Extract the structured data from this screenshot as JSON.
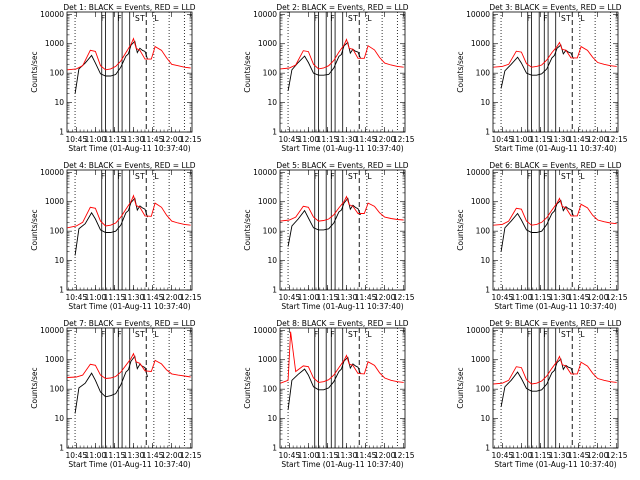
{
  "figure": {
    "xlabel": "Start Time (01-Aug-11 10:37:40)",
    "ylabel": "Counts/sec",
    "x_tick_labels": [
      "10:45",
      "11:00",
      "11:15",
      "11:30",
      "11:45",
      "12:00",
      "12:15"
    ],
    "y_tick_labels": [
      "1",
      "10",
      "100",
      "1000",
      "10000"
    ],
    "band_labels": [
      "F",
      "F",
      "S",
      "T",
      "L"
    ],
    "colors": {
      "events": "#000000",
      "lld": "#ff0000",
      "axes": "#000000"
    }
  },
  "chart_data": [
    {
      "type": "line",
      "title": "Det  1: BLACK = Events, RED = LLD",
      "xlim": [
        "10:37:40",
        "12:16:00"
      ],
      "ylim": [
        1,
        12000
      ],
      "yscale": "log",
      "series": [
        {
          "name": "BLACK = Events",
          "x": [
            "10:44",
            "10:47",
            "10:52",
            "10:57",
            "11:00",
            "11:04",
            "11:08",
            "11:12",
            "11:16",
            "11:20",
            "11:24",
            "11:26",
            "11:28",
            "11:31",
            "11:33",
            "11:35",
            "11:37",
            "11:39",
            "11:41"
          ],
          "y": [
            20,
            140,
            220,
            400,
            220,
            95,
            80,
            80,
            90,
            160,
            380,
            450,
            900,
            1200,
            500,
            700,
            600,
            550,
            300
          ]
        },
        {
          "name": "RED = LLD",
          "x": [
            "10:38",
            "10:45",
            "10:50",
            "10:56",
            "11:00",
            "11:04",
            "11:08",
            "11:12",
            "11:16",
            "11:20",
            "11:24",
            "11:28",
            "11:30",
            "11:32",
            "11:35",
            "11:39",
            "11:44",
            "11:47",
            "11:52",
            "11:56",
            "12:00",
            "12:05",
            "12:10",
            "12:15"
          ],
          "y": [
            130,
            140,
            180,
            600,
            550,
            180,
            130,
            140,
            170,
            260,
            500,
            950,
            1500,
            700,
            600,
            300,
            300,
            800,
            600,
            330,
            200,
            180,
            160,
            150
          ]
        }
      ]
    },
    {
      "type": "line",
      "title": "Det  2: BLACK = Events, RED = LLD",
      "xlim": [
        "10:37:40",
        "12:16:00"
      ],
      "ylim": [
        1,
        12000
      ],
      "yscale": "log",
      "series": [
        {
          "name": "BLACK = Events",
          "x": [
            "10:44",
            "10:47",
            "10:52",
            "10:57",
            "11:00",
            "11:04",
            "11:08",
            "11:12",
            "11:16",
            "11:20",
            "11:24",
            "11:26",
            "11:28",
            "11:31",
            "11:33",
            "11:35",
            "11:37",
            "11:39",
            "11:41"
          ],
          "y": [
            25,
            130,
            230,
            380,
            230,
            100,
            85,
            85,
            90,
            150,
            370,
            430,
            850,
            1100,
            480,
            650,
            560,
            520,
            320
          ]
        },
        {
          "name": "RED = LLD",
          "x": [
            "10:38",
            "10:45",
            "10:50",
            "10:56",
            "11:00",
            "11:04",
            "11:08",
            "11:12",
            "11:16",
            "11:20",
            "11:24",
            "11:28",
            "11:30",
            "11:32",
            "11:35",
            "11:39",
            "11:44",
            "11:47",
            "11:52",
            "11:56",
            "12:00",
            "12:05",
            "12:10",
            "12:15"
          ],
          "y": [
            140,
            150,
            190,
            580,
            540,
            200,
            140,
            150,
            180,
            270,
            520,
            900,
            1400,
            700,
            650,
            320,
            320,
            850,
            620,
            340,
            220,
            190,
            170,
            160
          ]
        }
      ]
    },
    {
      "type": "line",
      "title": "Det  3: BLACK = Events, RED = LLD",
      "xlim": [
        "10:37:40",
        "12:16:00"
      ],
      "ylim": [
        1,
        12000
      ],
      "yscale": "log",
      "series": [
        {
          "name": "BLACK = Events",
          "x": [
            "10:44",
            "10:47",
            "10:52",
            "10:57",
            "11:00",
            "11:04",
            "11:08",
            "11:12",
            "11:16",
            "11:20",
            "11:24",
            "11:26",
            "11:28",
            "11:31",
            "11:33",
            "11:35",
            "11:37",
            "11:39",
            "11:41"
          ],
          "y": [
            30,
            120,
            200,
            350,
            220,
            100,
            85,
            85,
            95,
            140,
            330,
            400,
            700,
            900,
            450,
            600,
            520,
            480,
            310
          ]
        },
        {
          "name": "RED = LLD",
          "x": [
            "10:38",
            "10:45",
            "10:50",
            "10:56",
            "11:00",
            "11:04",
            "11:08",
            "11:12",
            "11:16",
            "11:20",
            "11:24",
            "11:28",
            "11:30",
            "11:32",
            "11:35",
            "11:39",
            "11:44",
            "11:47",
            "11:52",
            "11:56",
            "12:00",
            "12:05",
            "12:10",
            "12:15"
          ],
          "y": [
            160,
            170,
            200,
            560,
            520,
            210,
            160,
            170,
            190,
            280,
            500,
            800,
            1100,
            650,
            600,
            330,
            330,
            800,
            600,
            350,
            230,
            200,
            180,
            170
          ]
        }
      ]
    },
    {
      "type": "line",
      "title": "Det  4: BLACK = Events, RED = LLD",
      "xlim": [
        "10:37:40",
        "12:16:00"
      ],
      "ylim": [
        1,
        12000
      ],
      "yscale": "log",
      "series": [
        {
          "name": "BLACK = Events",
          "x": [
            "10:44",
            "10:47",
            "10:52",
            "10:57",
            "11:00",
            "11:04",
            "11:08",
            "11:12",
            "11:16",
            "11:20",
            "11:24",
            "11:26",
            "11:28",
            "11:31",
            "11:33",
            "11:35",
            "11:37",
            "11:39",
            "11:41"
          ],
          "y": [
            15,
            120,
            180,
            420,
            260,
            110,
            90,
            90,
            100,
            160,
            420,
            500,
            950,
            1300,
            520,
            720,
            620,
            560,
            300
          ]
        },
        {
          "name": "RED = LLD",
          "x": [
            "10:38",
            "10:45",
            "10:50",
            "10:56",
            "11:00",
            "11:04",
            "11:08",
            "11:12",
            "11:16",
            "11:20",
            "11:24",
            "11:28",
            "11:30",
            "11:32",
            "11:35",
            "11:39",
            "11:44",
            "11:47",
            "11:52",
            "11:56",
            "12:00",
            "12:05",
            "12:10",
            "12:15"
          ],
          "y": [
            130,
            150,
            200,
            650,
            600,
            220,
            150,
            160,
            190,
            300,
            560,
            1000,
            1600,
            750,
            650,
            330,
            320,
            900,
            650,
            350,
            220,
            190,
            170,
            160
          ]
        }
      ]
    },
    {
      "type": "line",
      "title": "Det  5: BLACK = Events, RED = LLD",
      "xlim": [
        "10:37:40",
        "12:16:00"
      ],
      "ylim": [
        1,
        12000
      ],
      "yscale": "log",
      "series": [
        {
          "name": "BLACK = Events",
          "x": [
            "10:44",
            "10:47",
            "10:52",
            "10:57",
            "11:00",
            "11:04",
            "11:08",
            "11:12",
            "11:16",
            "11:20",
            "11:24",
            "11:26",
            "11:28",
            "11:31",
            "11:33",
            "11:35",
            "11:37",
            "11:39",
            "11:41"
          ],
          "y": [
            30,
            150,
            260,
            500,
            280,
            130,
            110,
            110,
            120,
            190,
            450,
            520,
            900,
            1300,
            560,
            760,
            640,
            580,
            360
          ]
        },
        {
          "name": "RED = LLD",
          "x": [
            "10:38",
            "10:45",
            "10:50",
            "10:56",
            "11:00",
            "11:04",
            "11:08",
            "11:12",
            "11:16",
            "11:20",
            "11:24",
            "11:28",
            "11:30",
            "11:32",
            "11:35",
            "11:39",
            "11:44",
            "11:47",
            "11:52",
            "11:56",
            "12:00",
            "12:05",
            "12:10",
            "12:15"
          ],
          "y": [
            220,
            240,
            300,
            700,
            650,
            300,
            220,
            230,
            260,
            360,
            620,
            1000,
            1500,
            800,
            700,
            400,
            400,
            900,
            700,
            420,
            300,
            270,
            250,
            240
          ]
        }
      ]
    },
    {
      "type": "line",
      "title": "Det  6: BLACK = Events, RED = LLD",
      "xlim": [
        "10:37:40",
        "12:16:00"
      ],
      "ylim": [
        1,
        12000
      ],
      "yscale": "log",
      "series": [
        {
          "name": "BLACK = Events",
          "x": [
            "10:44",
            "10:47",
            "10:52",
            "10:57",
            "11:00",
            "11:04",
            "11:08",
            "11:12",
            "11:16",
            "11:20",
            "11:24",
            "11:26",
            "11:28",
            "11:31",
            "11:33",
            "11:35",
            "11:37",
            "11:39",
            "11:41"
          ],
          "y": [
            20,
            130,
            220,
            400,
            240,
            110,
            90,
            90,
            100,
            170,
            400,
            480,
            850,
            1100,
            500,
            680,
            580,
            540,
            320
          ]
        },
        {
          "name": "RED = LLD",
          "x": [
            "10:38",
            "10:45",
            "10:50",
            "10:56",
            "11:00",
            "11:04",
            "11:08",
            "11:12",
            "11:16",
            "11:20",
            "11:24",
            "11:28",
            "11:30",
            "11:32",
            "11:35",
            "11:39",
            "11:44",
            "11:47",
            "11:52",
            "11:56",
            "12:00",
            "12:05",
            "12:10",
            "12:15"
          ],
          "y": [
            160,
            170,
            220,
            600,
            560,
            220,
            160,
            170,
            200,
            290,
            520,
            900,
            1300,
            700,
            620,
            330,
            330,
            820,
            620,
            350,
            240,
            210,
            190,
            180
          ]
        }
      ]
    },
    {
      "type": "line",
      "title": "Det  7: BLACK = Events, RED = LLD",
      "xlim": [
        "10:37:40",
        "12:16:00"
      ],
      "ylim": [
        1,
        12000
      ],
      "yscale": "log",
      "series": [
        {
          "name": "BLACK = Events",
          "x": [
            "10:44",
            "10:47",
            "10:52",
            "10:57",
            "11:00",
            "11:04",
            "11:08",
            "11:12",
            "11:16",
            "11:20",
            "11:24",
            "11:26",
            "11:28",
            "11:31",
            "11:33",
            "11:35",
            "11:37",
            "11:39",
            "11:41"
          ],
          "y": [
            15,
            110,
            160,
            350,
            200,
            80,
            55,
            60,
            70,
            140,
            380,
            460,
            900,
            1300,
            500,
            700,
            600,
            540,
            260
          ]
        },
        {
          "name": "RED = LLD",
          "x": [
            "10:38",
            "10:45",
            "10:50",
            "10:56",
            "11:00",
            "11:04",
            "11:08",
            "11:12",
            "11:16",
            "11:20",
            "11:24",
            "11:28",
            "11:30",
            "11:32",
            "11:35",
            "11:39",
            "11:44",
            "11:47",
            "11:52",
            "11:56",
            "12:00",
            "12:05",
            "12:10",
            "12:15"
          ],
          "y": [
            250,
            260,
            300,
            700,
            650,
            300,
            230,
            240,
            270,
            380,
            650,
            1100,
            1600,
            850,
            750,
            420,
            400,
            950,
            720,
            450,
            330,
            300,
            280,
            260
          ]
        }
      ]
    },
    {
      "type": "line",
      "title": "Det  8: BLACK = Events, RED = LLD",
      "xlim": [
        "10:37:40",
        "12:16:00"
      ],
      "ylim": [
        1,
        12000
      ],
      "yscale": "log",
      "series": [
        {
          "name": "BLACK = Events",
          "x": [
            "10:44",
            "10:47",
            "10:52",
            "10:57",
            "11:00",
            "11:04",
            "11:08",
            "11:12",
            "11:16",
            "11:20",
            "11:24",
            "11:26",
            "11:28",
            "11:31",
            "11:33",
            "11:35",
            "11:37",
            "11:39",
            "11:41"
          ],
          "y": [
            20,
            200,
            320,
            480,
            300,
            120,
            95,
            95,
            110,
            180,
            400,
            480,
            900,
            1200,
            520,
            720,
            620,
            560,
            330
          ]
        },
        {
          "name": "RED = LLD",
          "x": [
            "10:38",
            "10:44",
            "10:46",
            "10:50",
            "10:56",
            "11:00",
            "11:04",
            "11:08",
            "11:12",
            "11:16",
            "11:20",
            "11:24",
            "11:28",
            "11:30",
            "11:32",
            "11:35",
            "11:39",
            "11:44",
            "11:47",
            "11:52",
            "11:56",
            "12:00",
            "12:05",
            "12:10",
            "12:15"
          ],
          "y": [
            160,
            200,
            9000,
            400,
            620,
            580,
            240,
            170,
            180,
            210,
            300,
            540,
            950,
            1400,
            720,
            640,
            340,
            330,
            850,
            640,
            360,
            240,
            200,
            180,
            170
          ]
        }
      ]
    },
    {
      "type": "line",
      "title": "Det  9: BLACK = Events, RED = LLD",
      "xlim": [
        "10:37:40",
        "12:16:00"
      ],
      "ylim": [
        1,
        12000
      ],
      "yscale": "log",
      "series": [
        {
          "name": "BLACK = Events",
          "x": [
            "10:44",
            "10:47",
            "10:52",
            "10:57",
            "11:00",
            "11:04",
            "11:08",
            "11:12",
            "11:16",
            "11:20",
            "11:24",
            "11:26",
            "11:28",
            "11:31",
            "11:33",
            "11:35",
            "11:37",
            "11:39",
            "11:41"
          ],
          "y": [
            25,
            120,
            200,
            380,
            230,
            105,
            85,
            85,
            95,
            150,
            360,
            430,
            800,
            1050,
            470,
            640,
            560,
            520,
            310
          ]
        },
        {
          "name": "RED = LLD",
          "x": [
            "10:38",
            "10:45",
            "10:50",
            "10:56",
            "11:00",
            "11:04",
            "11:08",
            "11:12",
            "11:16",
            "11:20",
            "11:24",
            "11:28",
            "11:30",
            "11:32",
            "11:35",
            "11:39",
            "11:44",
            "11:47",
            "11:52",
            "11:56",
            "12:00",
            "12:05",
            "12:10",
            "12:15"
          ],
          "y": [
            150,
            160,
            200,
            580,
            540,
            210,
            150,
            160,
            190,
            280,
            510,
            880,
            1300,
            690,
            610,
            330,
            330,
            820,
            610,
            350,
            230,
            200,
            180,
            170
          ]
        }
      ]
    }
  ]
}
